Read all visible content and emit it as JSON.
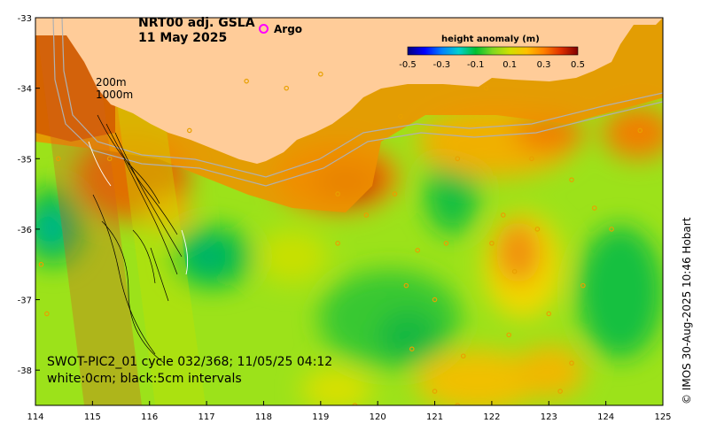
{
  "map": {
    "title_line1": "NRT00 adj. GSLA",
    "title_line2": "11 May 2025",
    "legend_argo": "Argo",
    "contour_labels": [
      "200m",
      "1000m"
    ],
    "swot_line1": "SWOT-PIC2_01 cycle 032/368; 11/05/25 04:12",
    "swot_line2": "white:0cm; black:5cm intervals",
    "credit": "© IMOS 30-Aug-2025 10:46 Hobart",
    "lon_range": [
      114,
      125
    ],
    "lat_range": [
      -38.5,
      -33
    ],
    "lon_ticks": [
      "114",
      "115",
      "116",
      "117",
      "118",
      "119",
      "120",
      "121",
      "122",
      "123",
      "124",
      "125"
    ],
    "lat_ticks": [
      "-33",
      "-34",
      "-35",
      "-36",
      "-37",
      "-38"
    ],
    "colorbar": {
      "title": "height anomaly (m)",
      "range": [
        -0.5,
        0.5
      ],
      "ticks": [
        "-0.5",
        "-0.3",
        "-0.1",
        "0.1",
        "0.3",
        "0.5"
      ],
      "colors": [
        "#000080",
        "#0000ff",
        "#0090ff",
        "#00e0e0",
        "#00c030",
        "#40d040",
        "#a0e020",
        "#e0e000",
        "#ffb000",
        "#ff6000",
        "#d02000",
        "#800000"
      ]
    },
    "land_color": "#ffcc99",
    "argo_color": "#ff00ff"
  }
}
